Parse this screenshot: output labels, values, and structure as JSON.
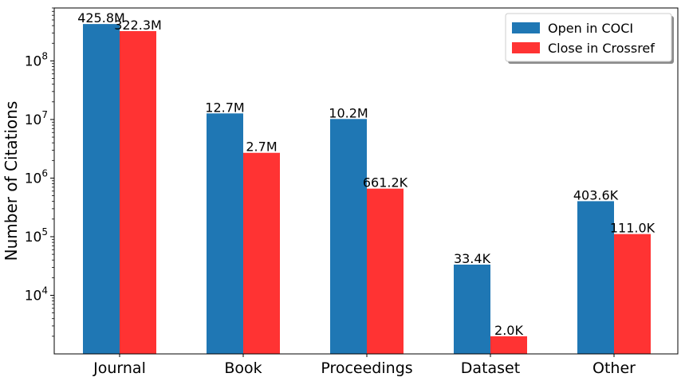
{
  "chart_data": {
    "type": "bar",
    "title": "",
    "xlabel": "",
    "ylabel": "Number of Citations",
    "yscale": "log",
    "ylim": [
      1000,
      800000000
    ],
    "grid": false,
    "legend_position": "top-right",
    "categories": [
      "Journal",
      "Book",
      "Proceedings",
      "Dataset",
      "Other"
    ],
    "series": [
      {
        "name": "Open in COCI",
        "color": "#1f77b4",
        "values": [
          425800000,
          12700000,
          10200000,
          33400,
          403600
        ],
        "labels": [
          "425.8M",
          "12.7M",
          "10.2M",
          "33.4K",
          "403.6K"
        ]
      },
      {
        "name": "Close in Crossref",
        "color": "#ff3333",
        "values": [
          322300000,
          2700000,
          661200,
          2000,
          111000
        ],
        "labels": [
          "322.3M",
          "2.7M",
          "661.2K",
          "2.0K",
          "111.0K"
        ]
      }
    ],
    "yticks": [
      {
        "value": 10000,
        "base": "10",
        "exp": "4"
      },
      {
        "value": 100000,
        "base": "10",
        "exp": "5"
      },
      {
        "value": 1000000,
        "base": "10",
        "exp": "6"
      },
      {
        "value": 10000000,
        "base": "10",
        "exp": "7"
      },
      {
        "value": 100000000,
        "base": "10",
        "exp": "8"
      }
    ]
  }
}
